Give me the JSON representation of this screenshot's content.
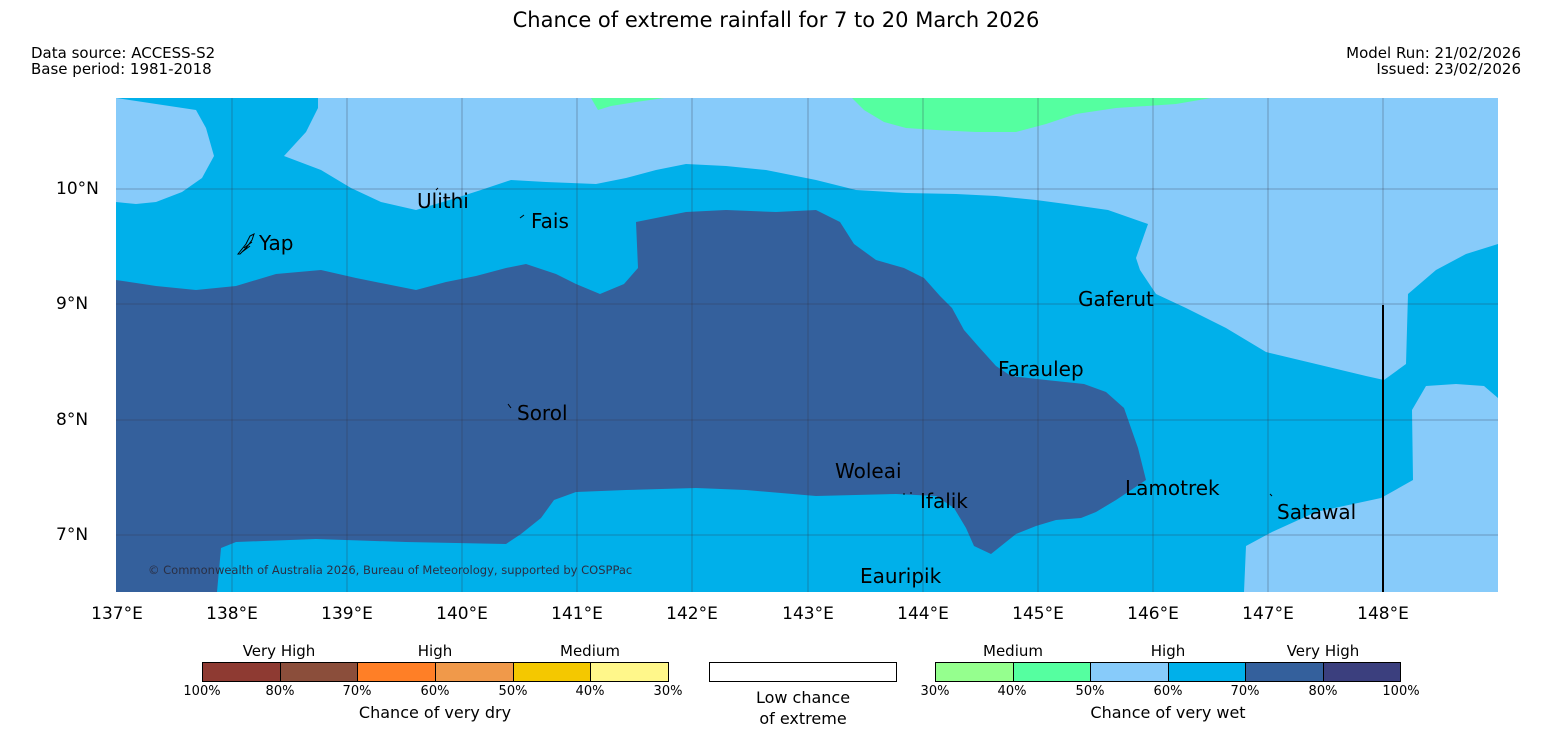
{
  "title": "Chance of extreme rainfall for 7 to 20 March 2026",
  "data_source": "Data source: ACCESS-S2",
  "base_period": "Base period: 1981-2018",
  "model_run": "Model Run: 21/02/2026",
  "issued": "Issued: 23/02/2026",
  "copyright": "© Commonwealth of Australia 2026, Bureau of Meteorology, supported by COSPPac",
  "x_ticks": [
    "137°E",
    "138°E",
    "139°E",
    "140°E",
    "141°E",
    "142°E",
    "143°E",
    "144°E",
    "145°E",
    "146°E",
    "147°E",
    "148°E"
  ],
  "y_ticks": [
    "10°N",
    "9°N",
    "8°N",
    "7°N"
  ],
  "places": {
    "yap": "Yap",
    "ulithi": "Ulithi",
    "fais": "Fais",
    "sorol": "Sorol",
    "gaferut": "Gaferut",
    "faraulep": "Faraulep",
    "woleai": "Woleai",
    "ifalik": "Ifalik",
    "lamotrek": "Lamotrek",
    "satawal": "Satawal",
    "eauripik": "Eauripik"
  },
  "colors": {
    "wet_50_60": "#87cbfa",
    "wet_60_70": "#00b0ea",
    "wet_70_80": "#34609c",
    "wet_40_50": "#55ffa0"
  },
  "legend": {
    "dry": {
      "cats": [
        "Very High",
        "High",
        "Medium"
      ],
      "pcts": [
        "100%",
        "80%",
        "70%",
        "60%",
        "50%",
        "40%",
        "30%"
      ],
      "colors": [
        "#8e3a32",
        "#8b4e3b",
        "#ff7f26",
        "#f0994a",
        "#f4c800",
        "#fff78a"
      ],
      "label": "Chance of very dry"
    },
    "low": {
      "line1": "Low chance",
      "line2": "of extreme"
    },
    "wet": {
      "cats": [
        "Medium",
        "High",
        "Very High"
      ],
      "pcts": [
        "30%",
        "40%",
        "50%",
        "60%",
        "70%",
        "80%",
        "100%"
      ],
      "colors": [
        "#95ff8e",
        "#55ffa0",
        "#87cbfa",
        "#00b0ea",
        "#34609c",
        "#3b3f7e"
      ],
      "label": "Chance of very wet"
    }
  }
}
